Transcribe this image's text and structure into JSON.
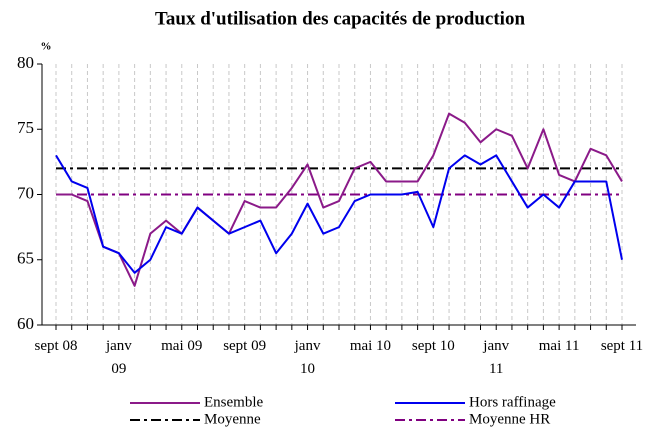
{
  "chart_data": {
    "type": "line",
    "title": "Taux d'utilisation des capacités de production",
    "y_label": "%",
    "categories": [
      "sept 08",
      null,
      null,
      null,
      "janv 09",
      null,
      null,
      null,
      "mai 09",
      null,
      null,
      null,
      "sept 09",
      null,
      null,
      null,
      "janv 10",
      null,
      null,
      null,
      "mai 10",
      null,
      null,
      null,
      "sept 10",
      null,
      null,
      null,
      "janv 11",
      null,
      null,
      null,
      "mai 11",
      null,
      null,
      null,
      "sept 11"
    ],
    "series": [
      {
        "name": "Ensemble",
        "color": "#8b1a89",
        "values": [
          70,
          70,
          69.5,
          66,
          65.5,
          63,
          67,
          68,
          67,
          69,
          68,
          67,
          69.5,
          69,
          69,
          70.5,
          72.3,
          69,
          69.5,
          72,
          72.5,
          71,
          71,
          71,
          73,
          76.2,
          75.5,
          74,
          75,
          74.5,
          72,
          75,
          71.5,
          71,
          73.5,
          73,
          71
        ]
      },
      {
        "name": "Hors raffinage",
        "color": "#0000ee",
        "values": [
          73,
          71,
          70.5,
          66,
          65.5,
          64,
          65,
          67.5,
          67,
          69,
          68,
          67,
          67.5,
          68,
          65.5,
          67,
          69.3,
          67,
          67.5,
          69.5,
          70,
          70,
          70,
          70.2,
          67.5,
          72,
          73,
          72.3,
          73,
          71,
          69,
          70,
          69,
          71,
          71,
          71,
          65
        ]
      }
    ],
    "reference_lines": [
      {
        "name": "Moyenne",
        "value": 72,
        "color": "#000000"
      },
      {
        "name": "Moyenne HR",
        "value": 70,
        "color": "#800080"
      }
    ],
    "ylim": [
      60,
      80
    ],
    "yticks": [
      60,
      65,
      70,
      75,
      80
    ],
    "grid": true
  }
}
